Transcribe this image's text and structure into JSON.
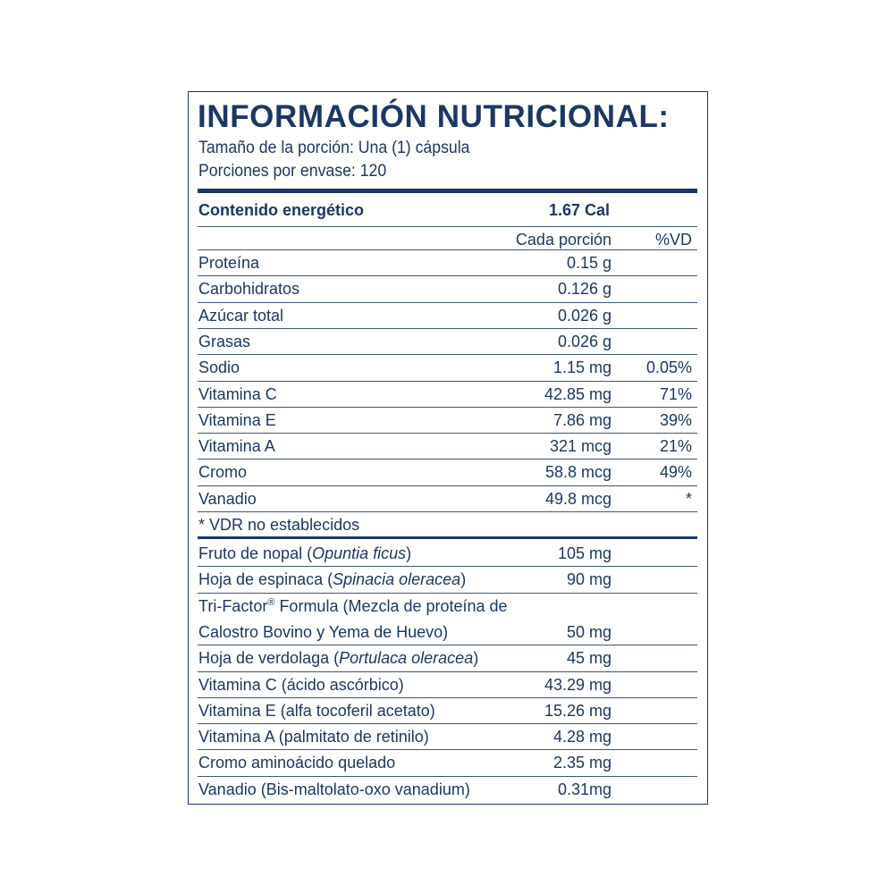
{
  "header": {
    "title": "INFORMACIÓN NUTRICIONAL:",
    "serving_size": "Tamaño de la porción: Una (1) cápsula",
    "servings_per_container": "Porciones por envase: 120"
  },
  "energy": {
    "label": "Contenido energético",
    "value": "1.67 Cal"
  },
  "columns": {
    "per_serving": "Cada porción",
    "daily_value": "%VD"
  },
  "nutrients": [
    {
      "name": "Proteína",
      "amount": "0.15 g",
      "dv": ""
    },
    {
      "name": "Carbohidratos",
      "amount": "0.126 g",
      "dv": ""
    },
    {
      "name": "Azúcar total",
      "amount": "0.026 g",
      "dv": ""
    },
    {
      "name": "Grasas",
      "amount": "0.026 g",
      "dv": ""
    },
    {
      "name": "Sodio",
      "amount": "1.15 mg",
      "dv": "0.05%"
    },
    {
      "name": "Vitamina C",
      "amount": "42.85 mg",
      "dv": "71%"
    },
    {
      "name": "Vitamina E",
      "amount": "7.86 mg",
      "dv": "39%"
    },
    {
      "name": "Vitamina A",
      "amount": "321 mcg",
      "dv": "21%"
    },
    {
      "name": "Cromo",
      "amount": "58.8 mcg",
      "dv": "49%"
    },
    {
      "name": "Vanadio",
      "amount": "49.8 mcg",
      "dv": "*"
    }
  ],
  "footnote": "* VDR no establecidos",
  "ingredients": [
    {
      "name": "Fruto de nopal (",
      "latin": "Opuntia ficus",
      "close": ")",
      "amount": "105  mg"
    },
    {
      "name": "Hoja de espinaca (",
      "latin": "Spinacia oleracea",
      "close": ")",
      "amount": "90 mg"
    },
    {
      "name": "Tri-Factor",
      "sup": "®",
      "rest": " Formula (Mezcla de proteína de",
      "amount": ""
    },
    {
      "name": "Calostro Bovino y Yema de Huevo)",
      "amount": "50 mg"
    },
    {
      "name": "Hoja de verdolaga (",
      "latin": "Portulaca oleracea",
      "close": ")",
      "amount": "45 mg"
    },
    {
      "name": "Vitamina C (ácido ascórbico)",
      "amount": "43.29 mg"
    },
    {
      "name": "Vitamina E (alfa tocoferil acetato)",
      "amount": "15.26 mg"
    },
    {
      "name": "Vitamina A (palmitato de retinilo)",
      "amount": "4.28 mg"
    },
    {
      "name": "Cromo aminoácido quelado",
      "amount": "2.35 mg"
    },
    {
      "name": "Vanadio (Bis-maltolato-oxo vanadium)",
      "amount": "0.31mg"
    }
  ]
}
